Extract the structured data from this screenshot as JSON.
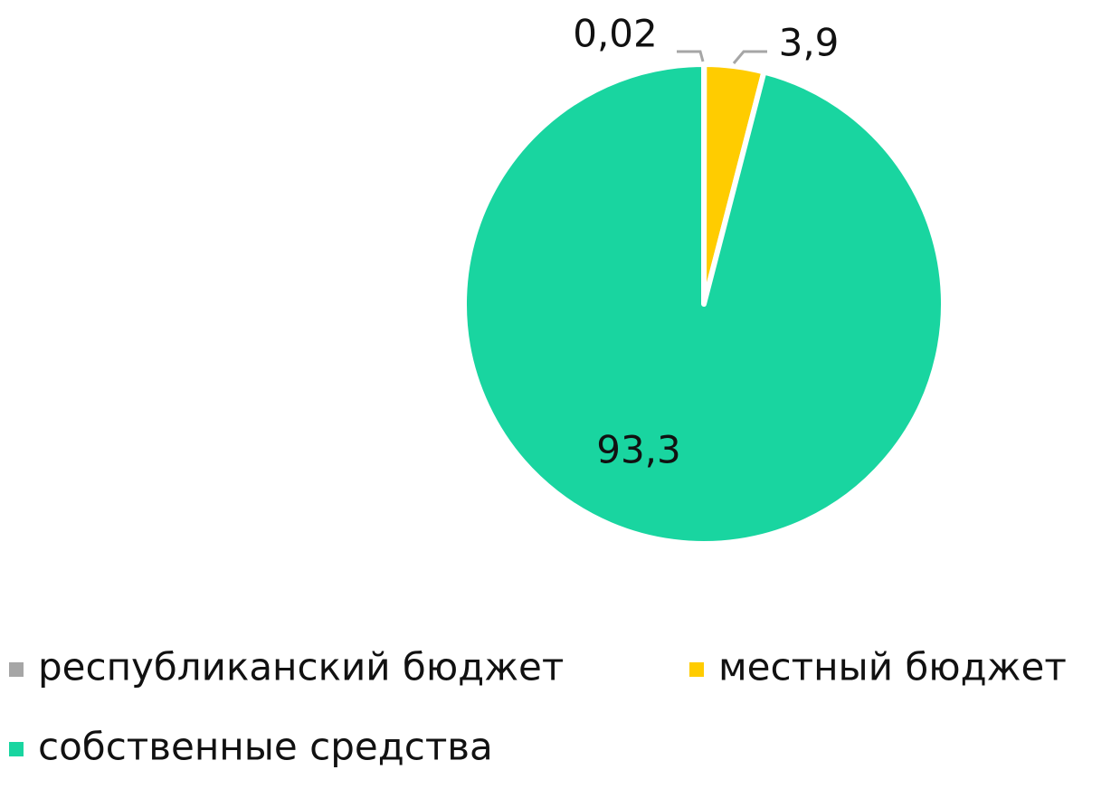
{
  "chart_data": {
    "type": "pie",
    "title": "",
    "categories": [
      "республиканский бюджет",
      "местный бюджет",
      "собственные средства"
    ],
    "values": [
      0.02,
      3.9,
      93.3
    ],
    "value_labels": [
      "0,02",
      "3,9",
      "93,3"
    ],
    "colors": [
      "#A6A6A6",
      "#FFCC00",
      "#19D5A0"
    ],
    "legend_position": "bottom",
    "start_angle_deg": 0,
    "direction": "clockwise"
  }
}
